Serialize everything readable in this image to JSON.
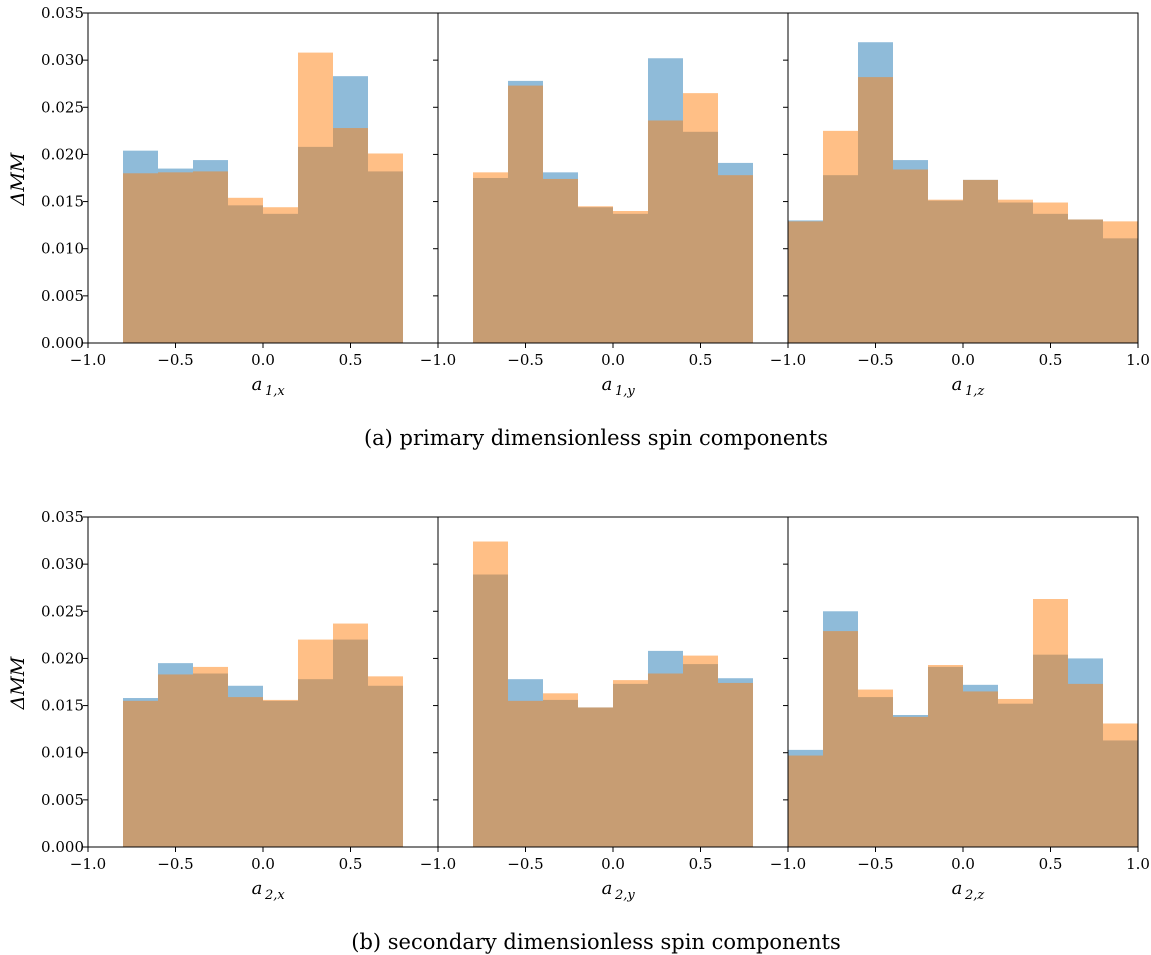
{
  "colors": {
    "series1": "#1f77b4",
    "series2": "#ff7f0e",
    "alpha": 0.5
  },
  "ylabel": "ΔMM",
  "chart_data": [
    {
      "type": "bar",
      "row": 0,
      "col": 0,
      "xlabel_main": "a",
      "xlabel_sub": "1,x",
      "caption": "",
      "bin_edges": [
        -0.8,
        -0.6,
        -0.4,
        -0.2,
        0.0,
        0.2,
        0.4,
        0.6,
        0.8
      ],
      "series": [
        {
          "values": [
            0.0204,
            0.0185,
            0.0194,
            0.0146,
            0.0137,
            0.0208,
            0.0283,
            0.0182
          ]
        },
        {
          "values": [
            0.018,
            0.0181,
            0.0182,
            0.0154,
            0.0144,
            0.0308,
            0.0228,
            0.0201
          ]
        }
      ],
      "xlim": [
        -1.0,
        1.0
      ],
      "ylim": [
        0,
        0.035
      ],
      "xticks": [
        "−1.0",
        "−0.5",
        "0.0",
        "0.5"
      ],
      "yticks": [
        "0.000",
        "0.005",
        "0.010",
        "0.015",
        "0.020",
        "0.025",
        "0.030",
        "0.035"
      ]
    },
    {
      "type": "bar",
      "row": 0,
      "col": 1,
      "xlabel_main": "a",
      "xlabel_sub": "1,y",
      "bin_edges": [
        -0.8,
        -0.6,
        -0.4,
        -0.2,
        0.0,
        0.2,
        0.4,
        0.6,
        0.8
      ],
      "series": [
        {
          "values": [
            0.0175,
            0.0278,
            0.0181,
            0.0144,
            0.0137,
            0.0302,
            0.0224,
            0.0191
          ]
        },
        {
          "values": [
            0.0181,
            0.0273,
            0.0174,
            0.0145,
            0.014,
            0.0236,
            0.0265,
            0.0178
          ]
        }
      ],
      "xlim": [
        -1.0,
        1.0
      ],
      "ylim": [
        0,
        0.035
      ],
      "xticks": [
        "−1.0",
        "−0.5",
        "0.0",
        "0.5"
      ]
    },
    {
      "type": "bar",
      "row": 0,
      "col": 2,
      "xlabel_main": "a",
      "xlabel_sub": "1,z",
      "bin_edges": [
        -1.0,
        -0.8,
        -0.6,
        -0.4,
        -0.2,
        0.0,
        0.2,
        0.4,
        0.6,
        0.8,
        1.0
      ],
      "series": [
        {
          "values": [
            0.013,
            0.0178,
            0.0319,
            0.0194,
            0.0151,
            0.0173,
            0.0149,
            0.0137,
            0.0131,
            0.0111
          ]
        },
        {
          "values": [
            0.0129,
            0.0225,
            0.0282,
            0.0184,
            0.0152,
            0.0173,
            0.0152,
            0.0149,
            0.0131,
            0.0129
          ]
        }
      ],
      "xlim": [
        -1.0,
        1.0
      ],
      "ylim": [
        0,
        0.035
      ],
      "xticks": [
        "−1.0",
        "−0.5",
        "0.0",
        "0.5",
        "1.0"
      ]
    },
    {
      "type": "bar",
      "row": 1,
      "col": 0,
      "xlabel_main": "a",
      "xlabel_sub": "2,x",
      "bin_edges": [
        -0.8,
        -0.6,
        -0.4,
        -0.2,
        0.0,
        0.2,
        0.4,
        0.6,
        0.8
      ],
      "series": [
        {
          "values": [
            0.0158,
            0.0195,
            0.0184,
            0.0171,
            0.0155,
            0.0178,
            0.022,
            0.0171
          ]
        },
        {
          "values": [
            0.0155,
            0.0183,
            0.0191,
            0.0159,
            0.0156,
            0.022,
            0.0237,
            0.0181
          ]
        }
      ],
      "xlim": [
        -1.0,
        1.0
      ],
      "ylim": [
        0,
        0.035
      ],
      "xticks": [
        "−1.0",
        "−0.5",
        "0.0",
        "0.5"
      ],
      "yticks": [
        "0.000",
        "0.005",
        "0.010",
        "0.015",
        "0.020",
        "0.025",
        "0.030",
        "0.035"
      ]
    },
    {
      "type": "bar",
      "row": 1,
      "col": 1,
      "xlabel_main": "a",
      "xlabel_sub": "2,y",
      "bin_edges": [
        -0.8,
        -0.6,
        -0.4,
        -0.2,
        0.0,
        0.2,
        0.4,
        0.6,
        0.8
      ],
      "series": [
        {
          "values": [
            0.0289,
            0.0178,
            0.0156,
            0.0148,
            0.0173,
            0.0208,
            0.0194,
            0.0179
          ]
        },
        {
          "values": [
            0.0324,
            0.0155,
            0.0163,
            0.0148,
            0.0177,
            0.0184,
            0.0203,
            0.0174
          ]
        }
      ],
      "xlim": [
        -1.0,
        1.0
      ],
      "ylim": [
        0,
        0.035
      ],
      "xticks": [
        "−1.0",
        "−0.5",
        "0.0",
        "0.5"
      ]
    },
    {
      "type": "bar",
      "row": 1,
      "col": 2,
      "xlabel_main": "a",
      "xlabel_sub": "2,z",
      "bin_edges": [
        -1.0,
        -0.8,
        -0.6,
        -0.4,
        -0.2,
        0.0,
        0.2,
        0.4,
        0.6,
        0.8,
        1.0
      ],
      "series": [
        {
          "values": [
            0.0103,
            0.025,
            0.0159,
            0.014,
            0.0191,
            0.0172,
            0.0152,
            0.0204,
            0.02,
            0.0113
          ]
        },
        {
          "values": [
            0.0097,
            0.0229,
            0.0167,
            0.0138,
            0.0193,
            0.0165,
            0.0157,
            0.0263,
            0.0173,
            0.0131
          ]
        }
      ],
      "xlim": [
        -1.0,
        1.0
      ],
      "ylim": [
        0,
        0.035
      ],
      "xticks": [
        "−1.0",
        "−0.5",
        "0.0",
        "0.5",
        "1.0"
      ]
    }
  ],
  "captions": [
    "(a) primary dimensionless spin components",
    "(b) secondary dimensionless spin components"
  ]
}
